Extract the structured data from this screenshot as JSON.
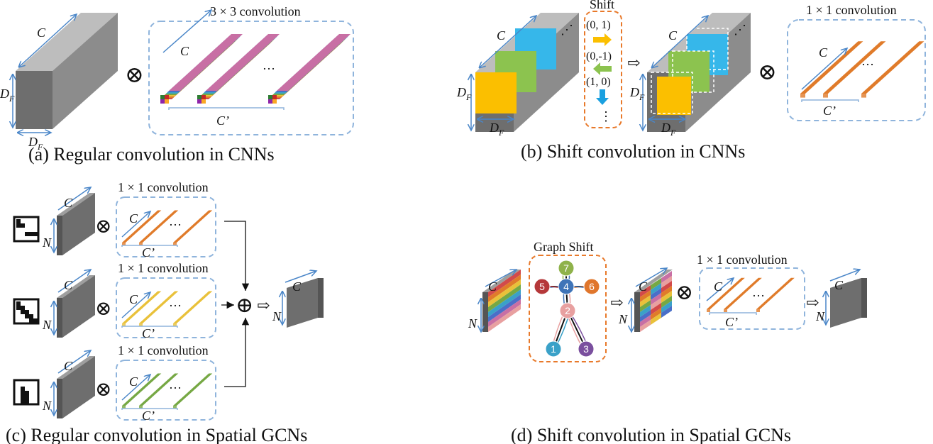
{
  "panels": {
    "a": {
      "caption": "(a) Regular convolution in CNNs",
      "conv_label": "3 × 3 convolution",
      "c": "C",
      "df": "D",
      "df_sub": "F",
      "cprime": "C’",
      "dots": "…"
    },
    "b": {
      "caption": "(b) Shift convolution in CNNs",
      "shift_title": "Shift",
      "shifts": [
        "(0, 1)",
        "(0,-1)",
        "(1, 0)"
      ],
      "vdots": "⋮",
      "conv_label": "1 × 1 convolution",
      "c": "C",
      "df": "D",
      "df_sub": "F",
      "cprime": "C’",
      "dots": "…"
    },
    "c": {
      "caption": "(c) Regular convolution in Spatial GCNs",
      "conv_label": "1 × 1 convolution",
      "c": "C",
      "n": "N",
      "cprime": "C’",
      "dots": "…"
    },
    "d": {
      "caption": "(d) Shift convolution in Spatial GCNs",
      "graph_title": "Graph Shift",
      "conv_label": "1 × 1 convolution",
      "nodes": [
        "7",
        "5",
        "4",
        "6",
        "2",
        "1",
        "3"
      ],
      "c": "C",
      "n": "N",
      "cprime": "C’",
      "dots": "…"
    }
  },
  "symbols": {
    "otimes": "⊗",
    "oplus": "⊕",
    "arrow": "⇨"
  },
  "colors": {
    "gray": "#7f7f7f",
    "orange": "#e07b2a",
    "yellow": "#e9c13a",
    "green": "#76a844",
    "blue": "#4a86c8",
    "dash": "#8fb4dc",
    "orange_dash": "#e8792a",
    "node_7": "#8fb24a",
    "node_5": "#b5383a",
    "node_4": "#3f74b8",
    "node_6": "#e0762c",
    "node_2": "#e8a0a0",
    "node_1": "#3aa1c8",
    "node_3": "#7a4f9e"
  }
}
